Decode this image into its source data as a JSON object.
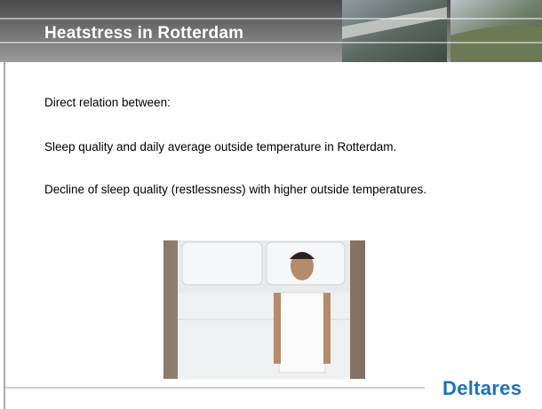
{
  "header": {
    "title": "Heatstress in Rotterdam"
  },
  "body": {
    "paragraphs": [
      "Direct relation between:",
      "Sleep quality and daily average outside temperature in Rotterdam.",
      "Decline of sleep quality (restlessness) with higher outside temperatures."
    ]
  },
  "footer": {
    "logo": "Deltares"
  }
}
